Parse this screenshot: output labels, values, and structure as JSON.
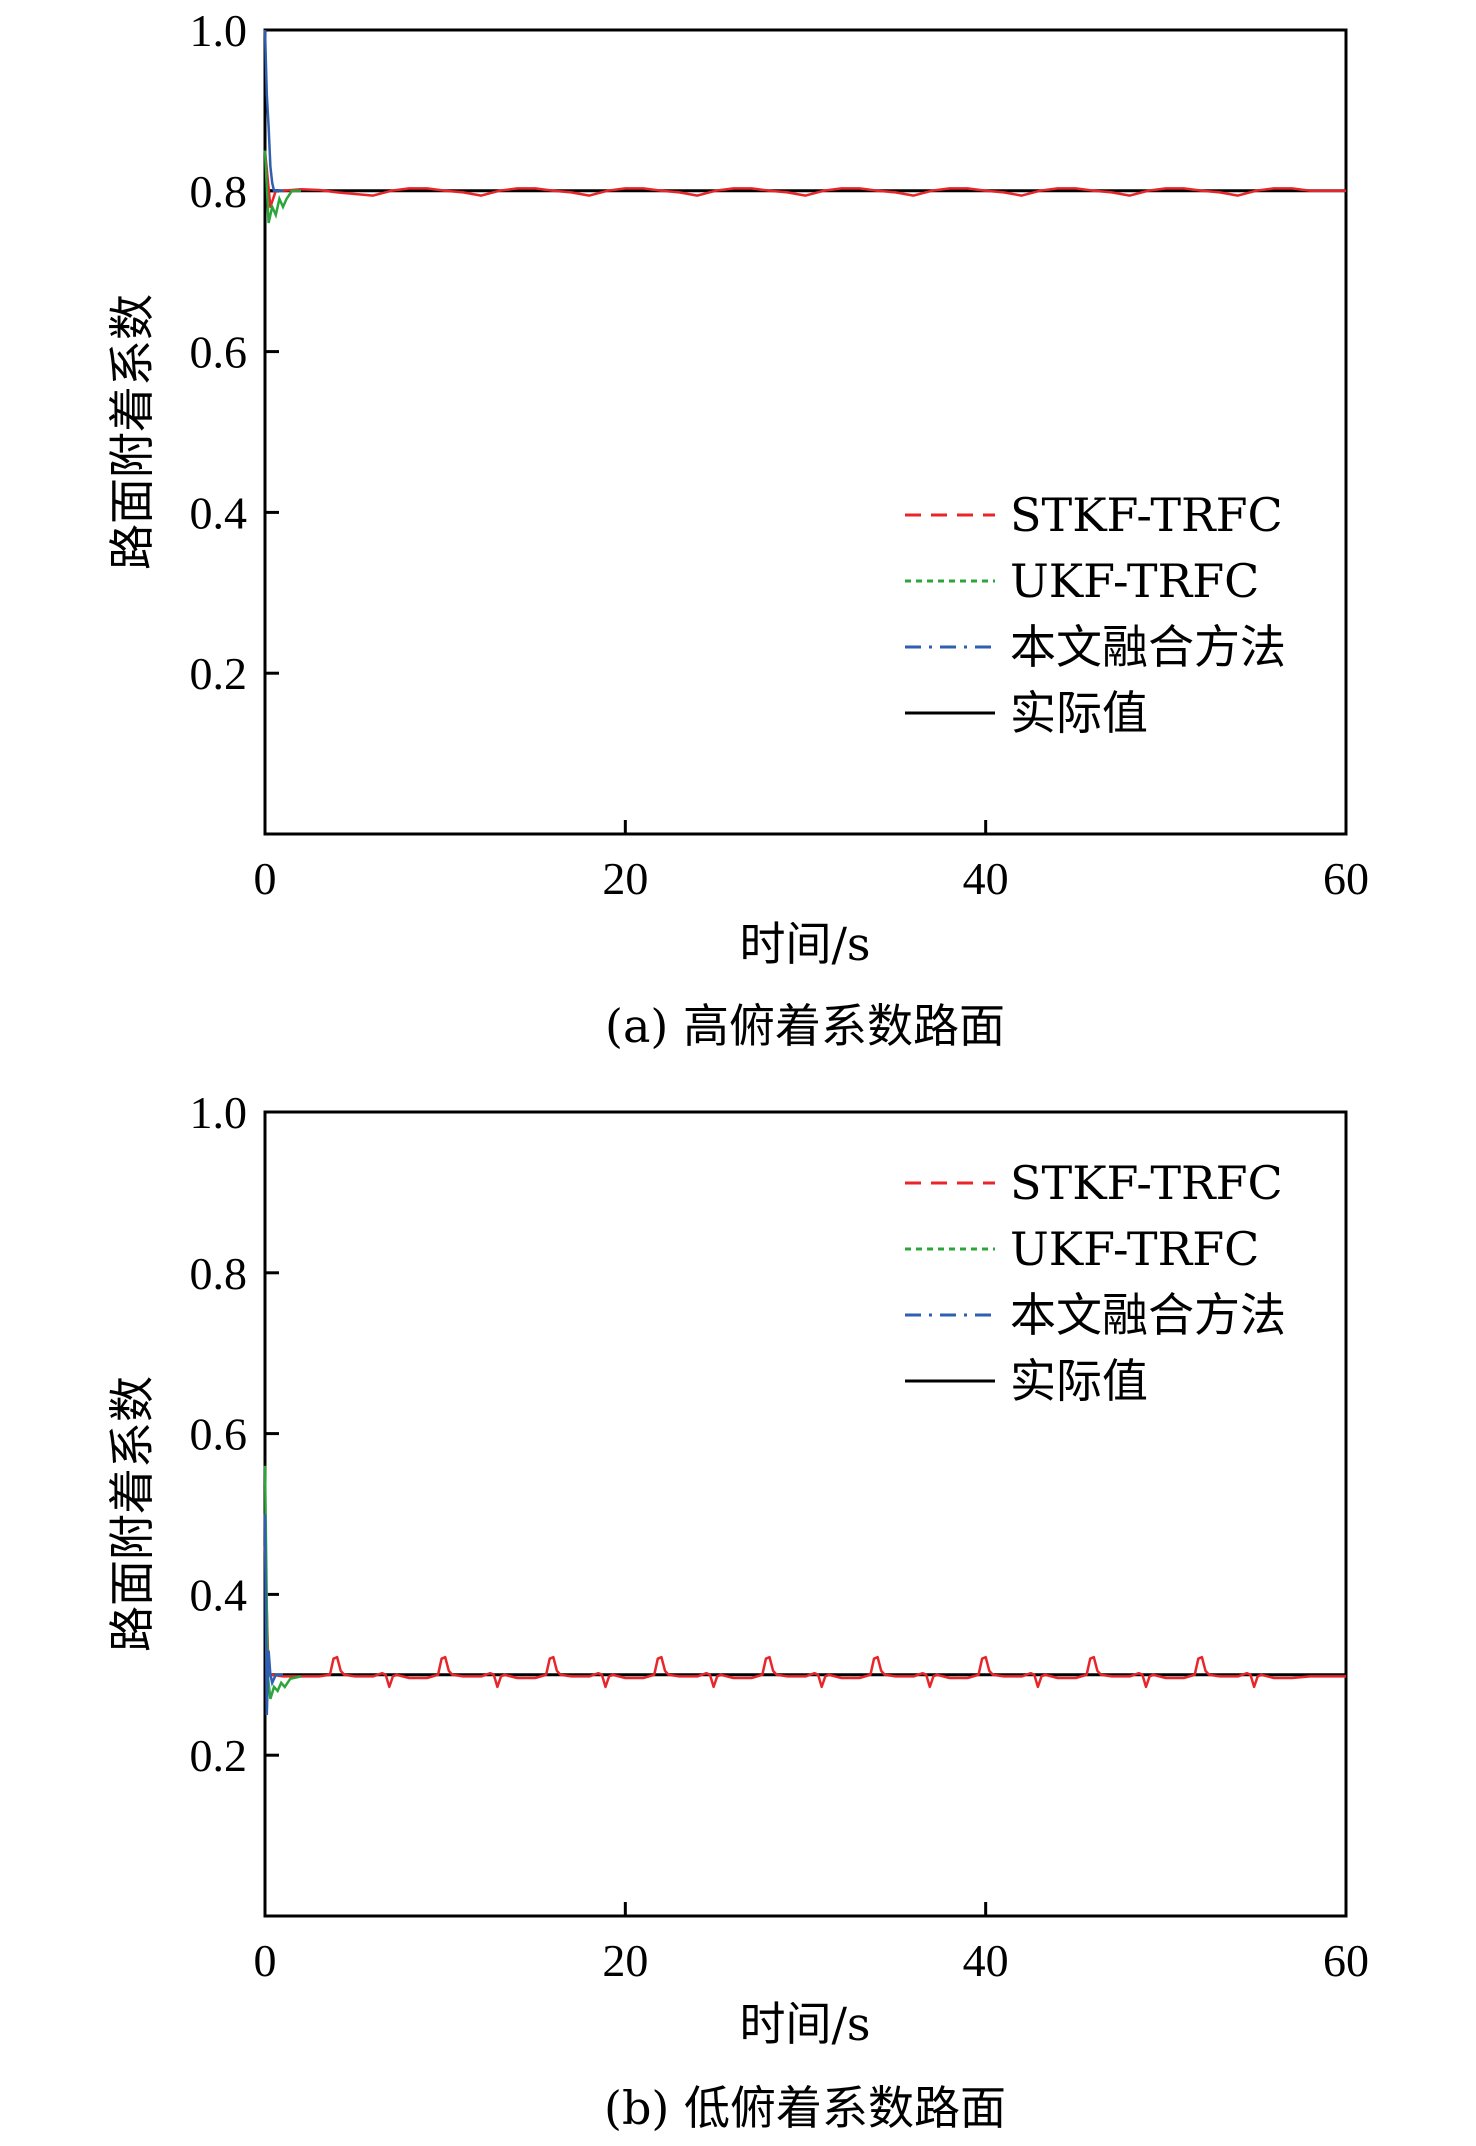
{
  "chart_data": [
    {
      "type": "line",
      "caption": "(a) 高俯着系数路面",
      "xlabel": "时间/s",
      "ylabel": "路面附着系数",
      "xlim": [
        0,
        60
      ],
      "ylim": [
        0,
        1.0
      ],
      "xticks": [
        "0",
        "20",
        "40",
        "60"
      ],
      "yticks": [
        "0.2",
        "0.4",
        "0.6",
        "0.8",
        "1.0"
      ],
      "legend_position": "bottom-right",
      "actual_value": 0.8,
      "series": [
        {
          "name": "STKF-TRFC",
          "color": "#e8262a",
          "style": "dashed",
          "x": [
            0,
            0.3,
            0.6,
            1,
            2,
            3,
            4,
            5,
            6,
            7,
            8,
            9,
            10,
            11,
            12,
            13,
            14,
            15,
            16,
            17,
            18,
            19,
            20,
            21,
            22,
            23,
            24,
            25,
            26,
            27,
            28,
            29,
            30,
            31,
            32,
            33,
            34,
            35,
            36,
            37,
            38,
            39,
            40,
            41,
            42,
            43,
            44,
            45,
            46,
            47,
            48,
            49,
            50,
            51,
            52,
            53,
            54,
            55,
            56,
            57,
            58,
            59,
            60
          ],
          "y": [
            0.85,
            0.78,
            0.8,
            0.8,
            0.802,
            0.801,
            0.798,
            0.796,
            0.794,
            0.8,
            0.803,
            0.803,
            0.8,
            0.798,
            0.794,
            0.8,
            0.803,
            0.803,
            0.8,
            0.798,
            0.794,
            0.8,
            0.803,
            0.803,
            0.8,
            0.798,
            0.794,
            0.8,
            0.803,
            0.803,
            0.8,
            0.798,
            0.794,
            0.8,
            0.803,
            0.803,
            0.8,
            0.798,
            0.794,
            0.8,
            0.803,
            0.803,
            0.8,
            0.798,
            0.794,
            0.8,
            0.803,
            0.803,
            0.8,
            0.798,
            0.794,
            0.8,
            0.803,
            0.803,
            0.8,
            0.798,
            0.794,
            0.8,
            0.803,
            0.803,
            0.8,
            0.8,
            0.8
          ]
        },
        {
          "name": "UKF-TRFC",
          "color": "#2ca53a",
          "style": "dotted",
          "x": [
            0,
            0.2,
            0.4,
            0.6,
            0.8,
            1.0,
            1.2,
            1.5,
            2
          ],
          "y": [
            0.85,
            0.76,
            0.78,
            0.77,
            0.79,
            0.78,
            0.79,
            0.8,
            0.8
          ]
        },
        {
          "name": "本文融合方法",
          "color": "#2e5fb0",
          "style": "dashdot",
          "x": [
            0,
            0.1,
            0.2,
            0.3,
            0.4,
            0.5,
            0.7,
            1.0
          ],
          "y": [
            1.0,
            0.92,
            0.88,
            0.83,
            0.81,
            0.8,
            0.8,
            0.8
          ]
        },
        {
          "name": "实际值",
          "color": "#000000",
          "style": "solid",
          "x": [
            0,
            60
          ],
          "y": [
            0.8,
            0.8
          ]
        }
      ]
    },
    {
      "type": "line",
      "caption": "(b) 低俯着系数路面",
      "xlabel": "时间/s",
      "ylabel": "路面附着系数",
      "xlim": [
        0,
        60
      ],
      "ylim": [
        0,
        1.0
      ],
      "xticks": [
        "0",
        "20",
        "40",
        "60"
      ],
      "yticks": [
        "0.2",
        "0.4",
        "0.6",
        "0.8",
        "1.0"
      ],
      "legend_position": "top-right",
      "actual_value": 0.3,
      "series": [
        {
          "name": "STKF-TRFC",
          "color": "#e8262a",
          "style": "dashed",
          "x": [
            0,
            0.2,
            0.4,
            1,
            2,
            3,
            3.6,
            3.8,
            4.0,
            4.2,
            4.4,
            5,
            6,
            6.5,
            6.7,
            6.9,
            7.1,
            7.3,
            8,
            9,
            9.6,
            9.8,
            10.0,
            10.2,
            10.4,
            11,
            12,
            12.5,
            12.7,
            12.9,
            13.1,
            13.3,
            14,
            15,
            15.6,
            15.8,
            16.0,
            16.2,
            16.4,
            17,
            18,
            18.5,
            18.7,
            18.9,
            19.1,
            19.3,
            20,
            21,
            21.6,
            21.8,
            22.0,
            22.2,
            22.4,
            23,
            24,
            24.5,
            24.7,
            24.9,
            25.1,
            25.3,
            26,
            27,
            27.6,
            27.8,
            28.0,
            28.2,
            28.4,
            29,
            30,
            30.5,
            30.7,
            30.9,
            31.1,
            31.3,
            32,
            33,
            33.6,
            33.8,
            34.0,
            34.2,
            34.4,
            35,
            36,
            36.5,
            36.7,
            36.9,
            37.1,
            37.3,
            38,
            39,
            39.6,
            39.8,
            40.0,
            40.2,
            40.4,
            41,
            42,
            42.5,
            42.7,
            42.9,
            43.1,
            43.3,
            44,
            45,
            45.6,
            45.8,
            46.0,
            46.2,
            46.4,
            47,
            48,
            48.5,
            48.7,
            48.9,
            49.1,
            49.3,
            50,
            51,
            51.6,
            51.8,
            52.0,
            52.2,
            52.4,
            53,
            54,
            54.5,
            54.7,
            54.9,
            55.1,
            55.3,
            56,
            57,
            58,
            59,
            60
          ],
          "y": [
            0.46,
            0.3,
            0.3,
            0.298,
            0.298,
            0.298,
            0.3,
            0.32,
            0.322,
            0.305,
            0.3,
            0.298,
            0.298,
            0.302,
            0.3,
            0.285,
            0.298,
            0.3,
            0.296,
            0.296,
            0.3,
            0.32,
            0.322,
            0.305,
            0.3,
            0.298,
            0.298,
            0.302,
            0.3,
            0.285,
            0.298,
            0.3,
            0.296,
            0.296,
            0.3,
            0.32,
            0.322,
            0.305,
            0.3,
            0.298,
            0.298,
            0.302,
            0.3,
            0.285,
            0.298,
            0.3,
            0.296,
            0.296,
            0.3,
            0.32,
            0.322,
            0.305,
            0.3,
            0.298,
            0.298,
            0.302,
            0.3,
            0.285,
            0.298,
            0.3,
            0.296,
            0.296,
            0.3,
            0.32,
            0.322,
            0.305,
            0.3,
            0.298,
            0.298,
            0.302,
            0.3,
            0.285,
            0.298,
            0.3,
            0.296,
            0.296,
            0.3,
            0.32,
            0.322,
            0.305,
            0.3,
            0.298,
            0.298,
            0.302,
            0.3,
            0.285,
            0.298,
            0.3,
            0.296,
            0.296,
            0.3,
            0.32,
            0.322,
            0.305,
            0.3,
            0.298,
            0.298,
            0.302,
            0.3,
            0.285,
            0.298,
            0.3,
            0.296,
            0.296,
            0.3,
            0.32,
            0.322,
            0.305,
            0.3,
            0.298,
            0.298,
            0.302,
            0.3,
            0.285,
            0.298,
            0.3,
            0.296,
            0.296,
            0.3,
            0.32,
            0.322,
            0.305,
            0.3,
            0.298,
            0.298,
            0.302,
            0.3,
            0.285,
            0.298,
            0.3,
            0.296,
            0.296,
            0.298,
            0.298,
            0.298
          ]
        },
        {
          "name": "UKF-TRFC",
          "color": "#2ca53a",
          "style": "dotted",
          "x": [
            0,
            0.15,
            0.3,
            0.5,
            0.7,
            0.9,
            1.1,
            1.4,
            2
          ],
          "y": [
            0.56,
            0.3,
            0.27,
            0.285,
            0.28,
            0.29,
            0.285,
            0.295,
            0.298
          ]
        },
        {
          "name": "本文融合方法",
          "color": "#2e5fb0",
          "style": "dashdot",
          "x": [
            0,
            0.1,
            0.2,
            0.3,
            0.4,
            0.6,
            1.0
          ],
          "y": [
            0.5,
            0.25,
            0.33,
            0.3,
            0.29,
            0.3,
            0.3
          ]
        },
        {
          "name": "实际值",
          "color": "#000000",
          "style": "solid",
          "x": [
            0,
            60
          ],
          "y": [
            0.3,
            0.3
          ]
        }
      ]
    }
  ]
}
